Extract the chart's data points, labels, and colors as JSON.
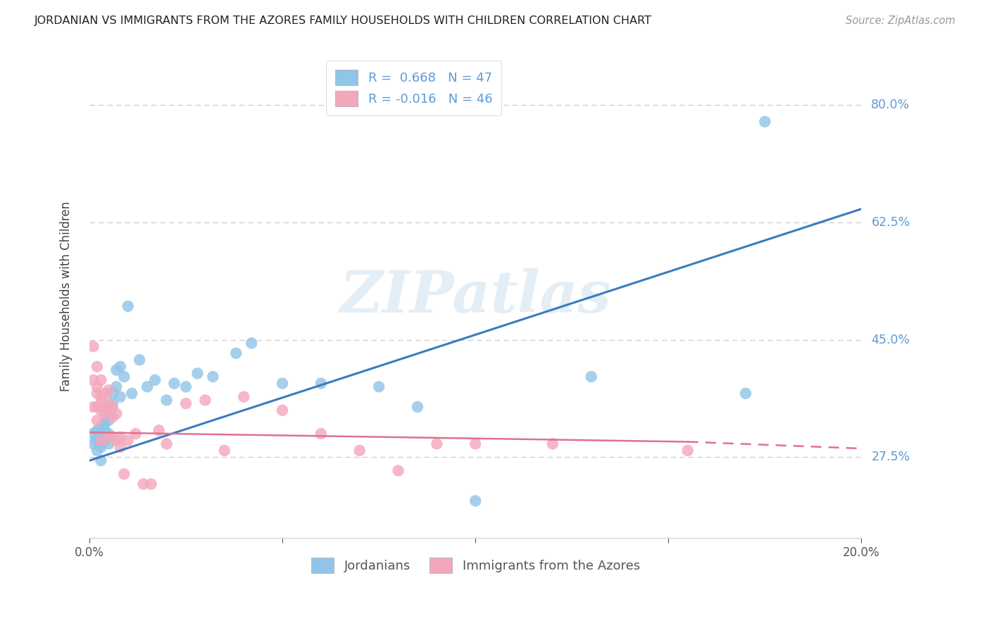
{
  "title": "JORDANIAN VS IMMIGRANTS FROM THE AZORES FAMILY HOUSEHOLDS WITH CHILDREN CORRELATION CHART",
  "source": "Source: ZipAtlas.com",
  "ylabel": "Family Households with Children",
  "ytick_labels": [
    "80.0%",
    "62.5%",
    "45.0%",
    "27.5%"
  ],
  "ytick_vals": [
    0.8,
    0.625,
    0.45,
    0.275
  ],
  "xmin": 0.0,
  "xmax": 0.2,
  "ymin": 0.155,
  "ymax": 0.875,
  "watermark": "ZIPatlas",
  "blue_color": "#90c4e8",
  "pink_color": "#f4a7bb",
  "blue_line_color": "#3a7bbf",
  "pink_line_color": "#e07090",
  "jordanians_label": "Jordanians",
  "azores_label": "Immigrants from the Azores",
  "blue_r": "0.668",
  "blue_n": "47",
  "pink_r": "-0.016",
  "pink_n": "46",
  "blue_scatter_x": [
    0.001,
    0.001,
    0.002,
    0.002,
    0.002,
    0.002,
    0.003,
    0.003,
    0.003,
    0.003,
    0.003,
    0.003,
    0.004,
    0.004,
    0.004,
    0.004,
    0.005,
    0.005,
    0.005,
    0.005,
    0.006,
    0.006,
    0.007,
    0.007,
    0.008,
    0.008,
    0.009,
    0.01,
    0.011,
    0.013,
    0.015,
    0.017,
    0.02,
    0.022,
    0.025,
    0.028,
    0.032,
    0.038,
    0.042,
    0.05,
    0.06,
    0.075,
    0.085,
    0.1,
    0.13,
    0.17,
    0.175
  ],
  "blue_scatter_y": [
    0.295,
    0.31,
    0.285,
    0.3,
    0.315,
    0.305,
    0.29,
    0.305,
    0.32,
    0.27,
    0.295,
    0.31,
    0.3,
    0.315,
    0.33,
    0.325,
    0.295,
    0.31,
    0.33,
    0.345,
    0.355,
    0.37,
    0.38,
    0.405,
    0.365,
    0.41,
    0.395,
    0.5,
    0.37,
    0.42,
    0.38,
    0.39,
    0.36,
    0.385,
    0.38,
    0.4,
    0.395,
    0.43,
    0.445,
    0.385,
    0.385,
    0.38,
    0.35,
    0.21,
    0.395,
    0.37,
    0.775
  ],
  "pink_scatter_x": [
    0.001,
    0.001,
    0.001,
    0.002,
    0.002,
    0.002,
    0.002,
    0.002,
    0.003,
    0.003,
    0.003,
    0.003,
    0.003,
    0.004,
    0.004,
    0.004,
    0.005,
    0.005,
    0.005,
    0.005,
    0.006,
    0.006,
    0.006,
    0.007,
    0.007,
    0.008,
    0.008,
    0.009,
    0.01,
    0.012,
    0.014,
    0.016,
    0.018,
    0.02,
    0.025,
    0.03,
    0.035,
    0.04,
    0.05,
    0.06,
    0.07,
    0.08,
    0.09,
    0.1,
    0.12,
    0.155
  ],
  "pink_scatter_y": [
    0.44,
    0.39,
    0.35,
    0.41,
    0.38,
    0.35,
    0.37,
    0.33,
    0.39,
    0.365,
    0.355,
    0.345,
    0.3,
    0.37,
    0.35,
    0.34,
    0.375,
    0.355,
    0.345,
    0.305,
    0.35,
    0.335,
    0.305,
    0.34,
    0.3,
    0.29,
    0.305,
    0.25,
    0.3,
    0.31,
    0.235,
    0.235,
    0.315,
    0.295,
    0.355,
    0.36,
    0.285,
    0.365,
    0.345,
    0.31,
    0.285,
    0.255,
    0.295,
    0.295,
    0.295,
    0.285
  ],
  "blue_line_x0": 0.0,
  "blue_line_y0": 0.27,
  "blue_line_x1": 0.2,
  "blue_line_y1": 0.645,
  "pink_line_x0": 0.0,
  "pink_line_y0": 0.312,
  "pink_line_x1_solid": 0.155,
  "pink_line_y1_solid": 0.298,
  "pink_line_x1_dash": 0.2,
  "pink_line_y1_dash": 0.288
}
